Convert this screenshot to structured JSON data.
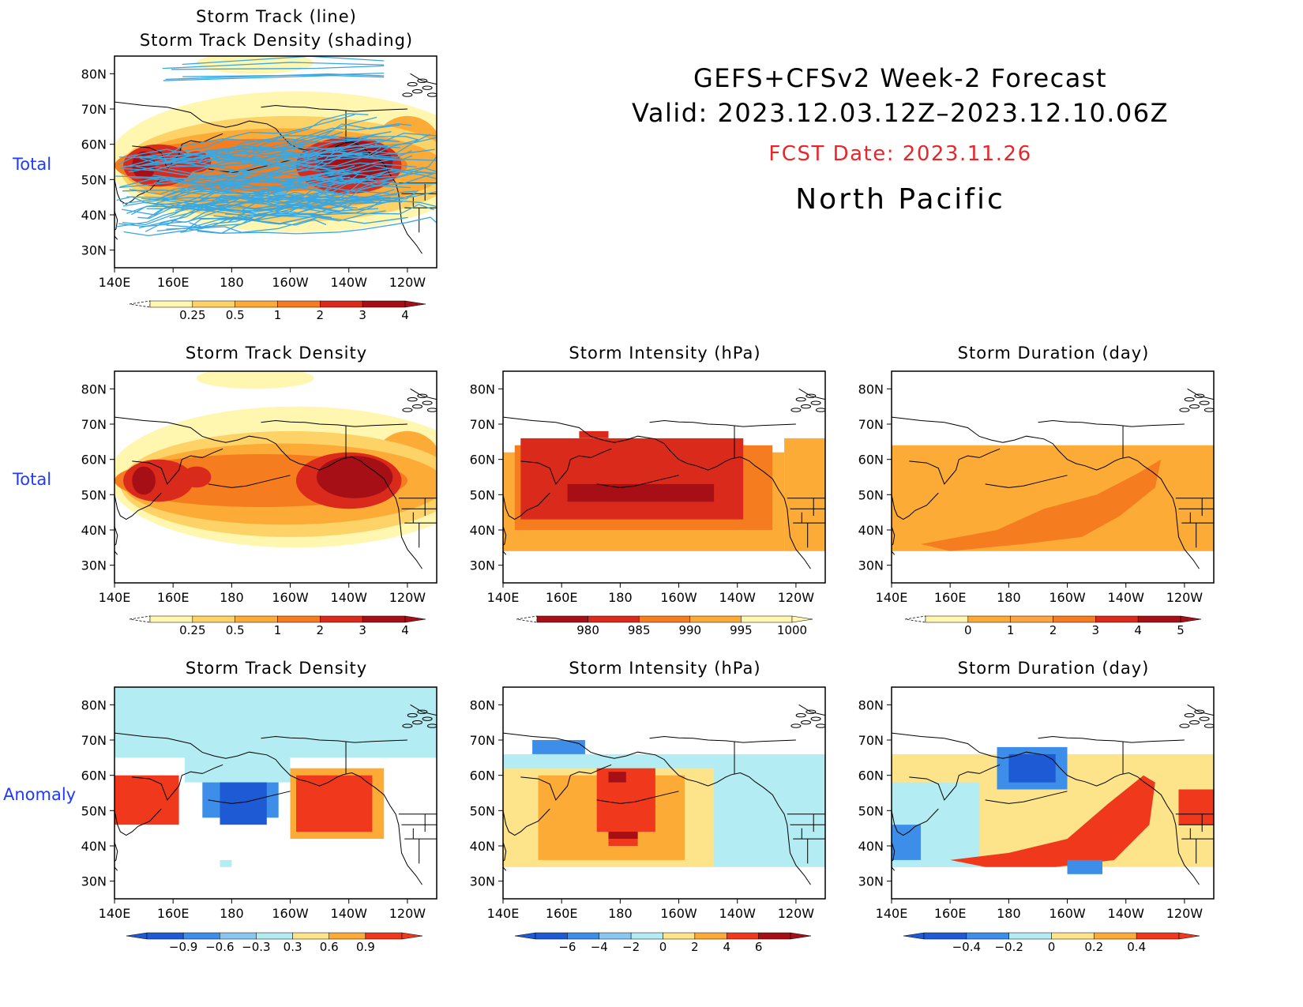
{
  "header": {
    "line1": "GEFS+CFSv2 Week-2 Forecast",
    "line2": "Valid: 2023.12.03.12Z–2023.12.10.06Z",
    "fcst_date": "FCST Date: 2023.11.26",
    "region": "North Pacific"
  },
  "rows": {
    "total_1": "Total",
    "total_2": "Total",
    "anomaly": "Anomaly"
  },
  "axes": {
    "lat_ticks": [
      "80N",
      "70N",
      "60N",
      "50N",
      "40N",
      "30N"
    ],
    "lon_ticks": [
      "140E",
      "160E",
      "180",
      "160W",
      "140W",
      "120W"
    ]
  },
  "colors": {
    "dens_yellow": "#fff6b0",
    "dens_ltorange": "#fdd267",
    "dens_orange": "#fcab37",
    "dens_dkorange": "#f67d1f",
    "dens_red": "#d92a1c",
    "dens_dkred": "#a50f15",
    "track_line": "#3aa7e0",
    "anom_ltblue": "#b3ecf3",
    "anom_blue": "#3c8ee8",
    "anom_dkblue": "#1e5ad4"
  },
  "chart_data": [
    {
      "id": "p0",
      "type": "heatmap",
      "title": [
        "Storm Track (line)",
        "Storm Track Density (shading)"
      ],
      "overlay": "storm tracks (line)",
      "colorbar": {
        "labels": [
          "0.25",
          "0.5",
          "1",
          "2",
          "3",
          "4"
        ],
        "colors": [
          "#fff6b0",
          "#fdd267",
          "#fcab37",
          "#f67d1f",
          "#d92a1c",
          "#a50f15"
        ]
      }
    },
    {
      "id": "p1",
      "type": "heatmap",
      "title": [
        "Storm Track Density"
      ],
      "colorbar": {
        "labels": [
          "0.25",
          "0.5",
          "1",
          "2",
          "3",
          "4"
        ],
        "colors": [
          "#fff6b0",
          "#fdd267",
          "#fcab37",
          "#f67d1f",
          "#d92a1c",
          "#a50f15"
        ]
      }
    },
    {
      "id": "p2",
      "type": "heatmap",
      "title": [
        "Storm Intensity (hPa)"
      ],
      "colorbar": {
        "labels": [
          "980",
          "985",
          "990",
          "995",
          "1000"
        ],
        "colors": [
          "#a50f15",
          "#d92a1c",
          "#f67d1f",
          "#fcab37",
          "#fff6b0"
        ]
      }
    },
    {
      "id": "p3",
      "type": "heatmap",
      "title": [
        "Storm Duration (day)"
      ],
      "colorbar": {
        "labels": [
          "0",
          "1",
          "2",
          "3",
          "4",
          "5"
        ],
        "colors": [
          "#fff6b0",
          "#fcab37",
          "#fba440",
          "#f67d1f",
          "#d92a1c",
          "#a50f15"
        ]
      }
    },
    {
      "id": "p4",
      "type": "heatmap",
      "title": [
        "Storm Track Density"
      ],
      "colorbar": {
        "labels": [
          "−0.9",
          "−0.6",
          "−0.3",
          "0.3",
          "0.6",
          "0.9"
        ],
        "colors": [
          "#1e5ad4",
          "#3c8ee8",
          "#8ac7f0",
          "#b3ecf3",
          "#fde48a",
          "#fcab37",
          "#f0391c"
        ]
      }
    },
    {
      "id": "p5",
      "type": "heatmap",
      "title": [
        "Storm Intensity (hPa)"
      ],
      "colorbar": {
        "labels": [
          "−6",
          "−4",
          "−2",
          "0",
          "2",
          "4",
          "6"
        ],
        "colors": [
          "#1e5ad4",
          "#3c8ee8",
          "#8ac7f0",
          "#b3ecf3",
          "#fde48a",
          "#fcab37",
          "#f0391c",
          "#a50f15"
        ]
      }
    },
    {
      "id": "p6",
      "type": "heatmap",
      "title": [
        "Storm Duration (day)"
      ],
      "colorbar": {
        "labels": [
          "−0.4",
          "−0.2",
          "0",
          "0.2",
          "0.4"
        ],
        "colors": [
          "#1e5ad4",
          "#3c8ee8",
          "#b3ecf3",
          "#fde48a",
          "#fcab37",
          "#f0391c"
        ]
      }
    }
  ]
}
